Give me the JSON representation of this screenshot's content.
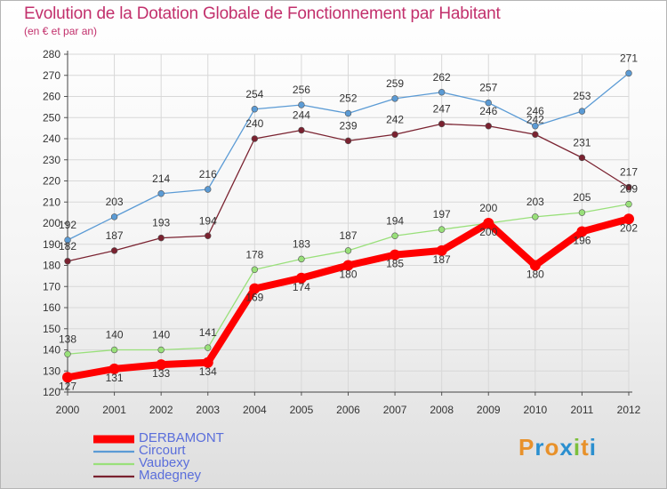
{
  "colors": {
    "title": "#c2306c",
    "legend_text": "#5a6edb",
    "axis": "#333333",
    "grid": "#d8d8d8"
  },
  "brand": {
    "letters": [
      "P",
      "r",
      "o",
      "x",
      "i",
      "t",
      "i"
    ],
    "colors": [
      "#e8912a",
      "#2b8fcf",
      "#e8912a",
      "#2b8fcf",
      "#7cbf3b",
      "#e8912a",
      "#2b8fcf"
    ]
  },
  "chart_data": {
    "type": "line",
    "title": "Evolution de la Dotation Globale de Fonctionnement par Habitant",
    "subtitle": "(en € et par an)",
    "x": [
      "2000",
      "2001",
      "2002",
      "2003",
      "2004",
      "2005",
      "2006",
      "2007",
      "2008",
      "2009",
      "2010",
      "2011",
      "2012"
    ],
    "ylim": [
      120,
      280
    ],
    "yticks": [
      120,
      130,
      140,
      150,
      160,
      170,
      180,
      190,
      200,
      210,
      220,
      230,
      240,
      250,
      260,
      270,
      280
    ],
    "grid": true,
    "legend_position": "bottom-left",
    "series": [
      {
        "name": "DERBAMONT",
        "color": "#ff0000",
        "values": [
          127,
          131,
          133,
          134,
          169,
          174,
          180,
          185,
          187,
          200,
          180,
          196,
          202
        ]
      },
      {
        "name": "Circourt",
        "color": "#5b9bd5",
        "values": [
          192,
          203,
          214,
          216,
          254,
          256,
          252,
          259,
          262,
          257,
          246,
          253,
          271
        ]
      },
      {
        "name": "Vaubexy",
        "color": "#99e07a",
        "values": [
          138,
          140,
          140,
          141,
          178,
          183,
          187,
          194,
          197,
          200,
          203,
          205,
          209
        ]
      },
      {
        "name": "Madegney",
        "color": "#7a2230",
        "values": [
          182,
          187,
          193,
          194,
          240,
          244,
          239,
          242,
          247,
          246,
          242,
          231,
          217
        ]
      }
    ]
  }
}
